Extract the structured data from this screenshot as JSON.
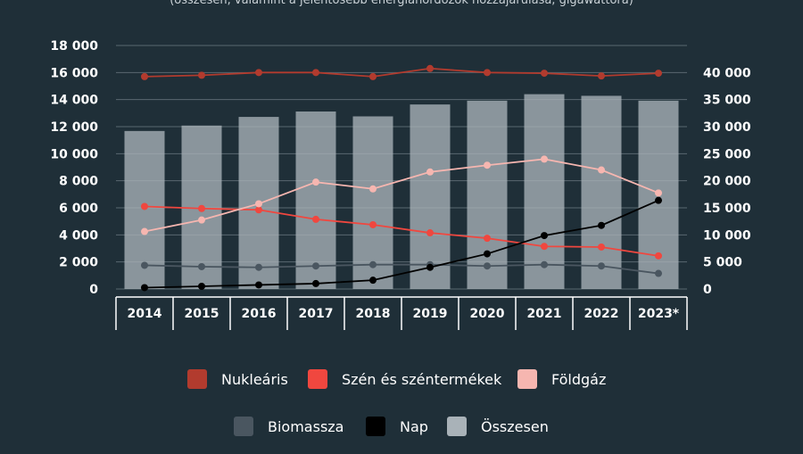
{
  "subtitle": "(összesen, valamint a jelentősebb energiahordozók hozzájárulása, gigawattóra)",
  "colors": {
    "background": "#1f2f38",
    "grid": "#5a6870",
    "nuclear": "#b23b2e",
    "coal": "#f0473f",
    "gas": "#f6b6b0",
    "biomass": "#4a5660",
    "solar": "#000000",
    "total": "#a9b2b8"
  },
  "chart_data": {
    "type": "bar+line",
    "categories": [
      "2014",
      "2015",
      "2016",
      "2017",
      "2018",
      "2019",
      "2020",
      "2021",
      "2022",
      "2023*"
    ],
    "y_left": {
      "ylim": [
        0,
        18000
      ],
      "ticks": [
        0,
        2000,
        4000,
        6000,
        8000,
        10000,
        12000,
        14000,
        16000,
        18000
      ],
      "tick_labels": [
        "0",
        "2 000",
        "4 000",
        "6 000",
        "8 000",
        "10 000",
        "12 000",
        "14 000",
        "16 000",
        "18 000"
      ]
    },
    "y_right": {
      "ylim": [
        0,
        45000
      ],
      "ticks": [
        0,
        5000,
        10000,
        15000,
        20000,
        25000,
        30000,
        35000,
        40000
      ],
      "tick_labels": [
        "0",
        "5 000",
        "10 000",
        "15 000",
        "20 000",
        "25 000",
        "30 000",
        "35 000",
        "40 000"
      ]
    },
    "bar_series": {
      "name": "Összesen",
      "axis": "right",
      "values": [
        29200,
        30200,
        31800,
        32800,
        31900,
        34100,
        34800,
        36000,
        35700,
        34800
      ]
    },
    "line_series": [
      {
        "name": "Nukleáris",
        "key": "nuclear",
        "axis": "left",
        "values": [
          15700,
          15800,
          16000,
          16000,
          15700,
          16300,
          16000,
          15950,
          15750,
          15950
        ]
      },
      {
        "name": "Szén és széntermékek",
        "key": "coal",
        "axis": "left",
        "values": [
          6100,
          5950,
          5850,
          5150,
          4750,
          4150,
          3750,
          3150,
          3100,
          2450
        ]
      },
      {
        "name": "Földgáz",
        "key": "gas",
        "axis": "left",
        "values": [
          4250,
          5100,
          6300,
          7900,
          7400,
          8650,
          9150,
          9600,
          8800,
          7100
        ]
      },
      {
        "name": "Biomassza",
        "key": "biomass",
        "axis": "left",
        "values": [
          1750,
          1650,
          1600,
          1700,
          1800,
          1800,
          1700,
          1800,
          1700,
          1150
        ]
      },
      {
        "name": "Nap",
        "key": "solar",
        "axis": "left",
        "values": [
          100,
          200,
          300,
          400,
          650,
          1600,
          2600,
          3950,
          4700,
          6550
        ]
      }
    ],
    "legend": {
      "placement": "bottom",
      "rows": [
        [
          {
            "label": "Nukleáris",
            "key": "nuclear"
          },
          {
            "label": "Szén és széntermékek",
            "key": "coal"
          },
          {
            "label": "Földgáz",
            "key": "gas"
          }
        ],
        [
          {
            "label": "Biomassza",
            "key": "biomass"
          },
          {
            "label": "Nap",
            "key": "solar"
          },
          {
            "label": "Összesen",
            "key": "total"
          }
        ]
      ]
    },
    "grid": true
  }
}
